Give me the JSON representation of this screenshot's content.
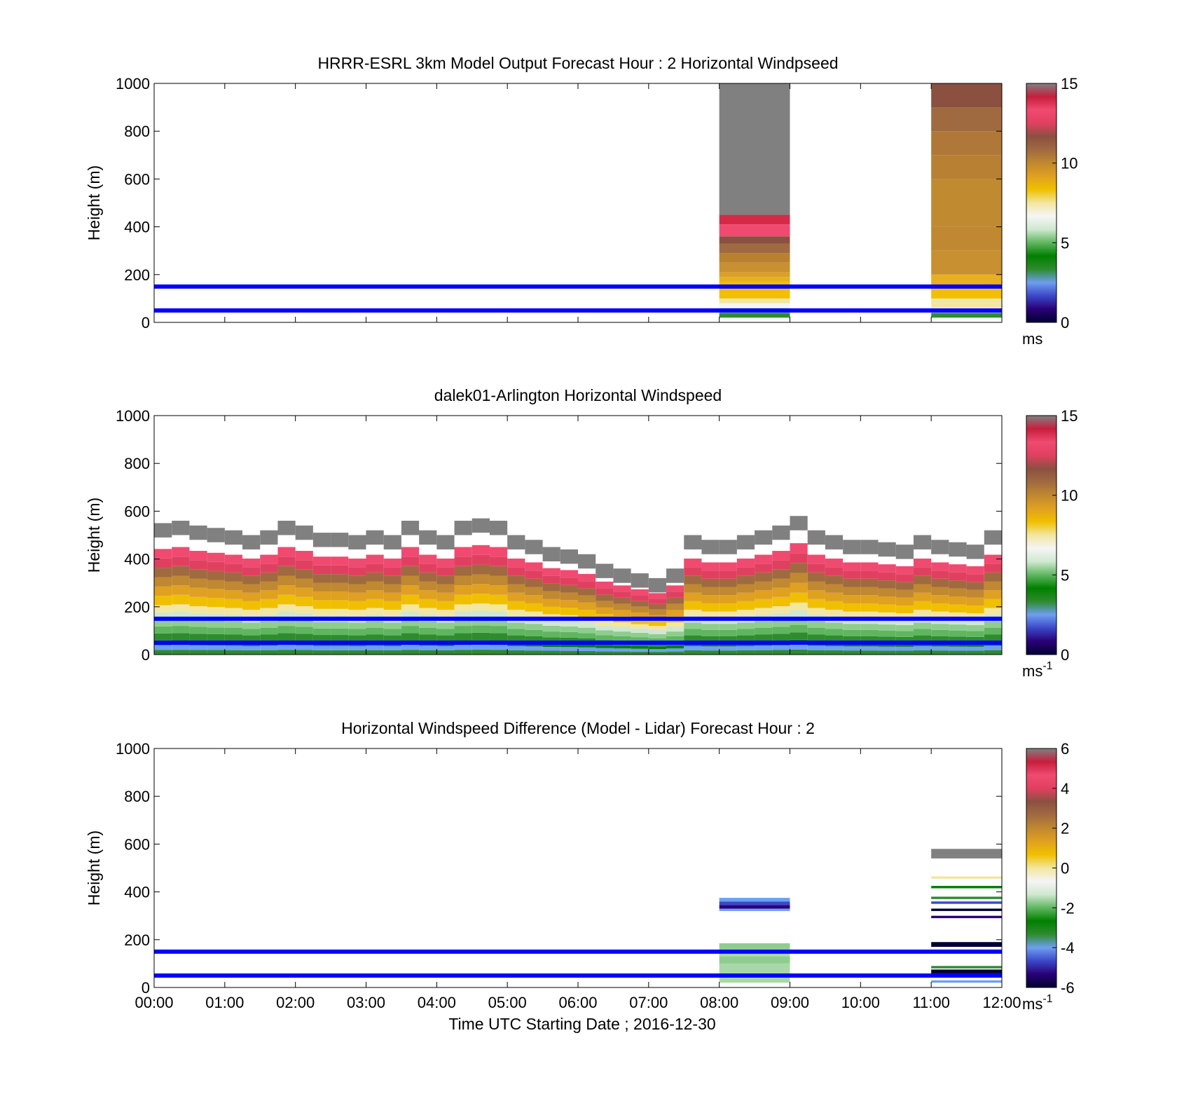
{
  "colorbar_stops": [
    "#000033",
    "#2a0077",
    "#3b48c8",
    "#6e9ff0",
    "#2e8b2e",
    "#008000",
    "#5fb65f",
    "#cfe8cf",
    "#f5f5f5",
    "#f2e6a0",
    "#f0c000",
    "#e0a020",
    "#c08830",
    "#a06a40",
    "#8b5040",
    "#e04060",
    "#f04a70",
    "#c81e3c",
    "#808080"
  ],
  "panels": [
    {
      "title": "HRRR-ESRL 3km Model Output   Forecast Hour : 2 Horizontal Windpseed",
      "ylabel": "Height (m)",
      "unit_base": "ms",
      "unit_sup": "",
      "show_xticks": false
    },
    {
      "title": "dalek01-Arlington  Horizontal Windspeed",
      "ylabel": "Height (m)",
      "unit_base": "ms",
      "unit_sup": "-1",
      "show_xticks": false
    },
    {
      "title": "Horizontal Windspeed Difference (Model - Lidar) Forecast Hour : 2",
      "ylabel": "Height (m)",
      "unit_base": "ms",
      "unit_sup": "-1",
      "show_xticks": true
    }
  ],
  "xlabel": "Time UTC  Starting Date ; 2016-12-30",
  "chart_data": [
    {
      "type": "heatmap",
      "title": "HRRR-ESRL 3km Model Output   Forecast Hour : 2 Horizontal Windpseed",
      "ylabel": "Height (m)",
      "xlim": [
        0,
        12
      ],
      "ylim": [
        0,
        1000
      ],
      "x_ticks": [
        "00:00",
        "01:00",
        "02:00",
        "03:00",
        "04:00",
        "05:00",
        "06:00",
        "07:00",
        "08:00",
        "09:00",
        "10:00",
        "11:00",
        "12:00"
      ],
      "y_ticks": [
        0,
        200,
        400,
        600,
        800,
        1000
      ],
      "colorbar": {
        "range": [
          0,
          15
        ],
        "ticks": [
          0,
          5,
          10,
          15
        ],
        "unit": "ms"
      },
      "reference_lines_m": [
        50,
        150
      ],
      "columns": [
        {
          "t0": 8,
          "t1": 9,
          "cells": [
            [
              10,
              20,
              "#f5f5f5"
            ],
            [
              20,
              40,
              "#2e8b2e"
            ],
            [
              40,
              60,
              "#9fd49f"
            ],
            [
              60,
              80,
              "#f5f5f5"
            ],
            [
              80,
              100,
              "#f2e6a0"
            ],
            [
              100,
              120,
              "#f0c000"
            ],
            [
              120,
              150,
              "#f0c000"
            ],
            [
              150,
              170,
              "#f0c000"
            ],
            [
              170,
              190,
              "#e8b020"
            ],
            [
              190,
              210,
              "#d9a028"
            ],
            [
              210,
              250,
              "#c89030"
            ],
            [
              250,
              290,
              "#b8802f"
            ],
            [
              290,
              330,
              "#a06a40"
            ],
            [
              330,
              360,
              "#8b5040"
            ],
            [
              360,
              410,
              "#f04a70"
            ],
            [
              410,
              450,
              "#d42a48"
            ],
            [
              450,
              1000,
              "#808080"
            ]
          ]
        },
        {
          "t0": 11,
          "t1": 12,
          "cells": [
            [
              10,
              20,
              "#f5f5f5"
            ],
            [
              20,
              40,
              "#2e8b2e"
            ],
            [
              40,
              60,
              "#f5f5f5"
            ],
            [
              60,
              80,
              "#f2e6a0"
            ],
            [
              80,
              100,
              "#f2e6a0"
            ],
            [
              100,
              150,
              "#f0c000"
            ],
            [
              150,
              200,
              "#e8b020"
            ],
            [
              200,
              300,
              "#c89030"
            ],
            [
              300,
              400,
              "#c08830"
            ],
            [
              400,
              500,
              "#c08a30"
            ],
            [
              500,
              600,
              "#c08a30"
            ],
            [
              600,
              700,
              "#b88032"
            ],
            [
              700,
              800,
              "#b07838"
            ],
            [
              800,
              900,
              "#a06a40"
            ],
            [
              900,
              1000,
              "#8b5040"
            ]
          ]
        }
      ]
    },
    {
      "type": "heatmap",
      "title": "dalek01-Arlington  Horizontal Windspeed",
      "ylabel": "Height (m)",
      "xlim": [
        0,
        12
      ],
      "ylim": [
        0,
        1000
      ],
      "x_ticks": [
        "00:00",
        "01:00",
        "02:00",
        "03:00",
        "04:00",
        "05:00",
        "06:00",
        "07:00",
        "08:00",
        "09:00",
        "10:00",
        "11:00",
        "12:00"
      ],
      "y_ticks": [
        0,
        200,
        400,
        600,
        800,
        1000
      ],
      "colorbar": {
        "range": [
          0,
          15
        ],
        "ticks": [
          0,
          5,
          10,
          15
        ],
        "unit": "ms-1"
      },
      "reference_lines_m": [
        50,
        150
      ],
      "profiles_hour_top_m": [
        [
          0.0,
          550
        ],
        [
          0.25,
          560
        ],
        [
          0.5,
          540
        ],
        [
          0.75,
          530
        ],
        [
          1.0,
          520
        ],
        [
          1.25,
          500
        ],
        [
          1.5,
          520
        ],
        [
          1.75,
          560
        ],
        [
          2.0,
          540
        ],
        [
          2.25,
          510
        ],
        [
          2.5,
          510
        ],
        [
          2.75,
          500
        ],
        [
          3.0,
          520
        ],
        [
          3.25,
          500
        ],
        [
          3.5,
          560
        ],
        [
          3.75,
          520
        ],
        [
          4.0,
          500
        ],
        [
          4.25,
          560
        ],
        [
          4.5,
          570
        ],
        [
          4.75,
          560
        ],
        [
          5.0,
          500
        ],
        [
          5.25,
          480
        ],
        [
          5.5,
          450
        ],
        [
          5.75,
          440
        ],
        [
          6.0,
          420
        ],
        [
          6.25,
          380
        ],
        [
          6.5,
          360
        ],
        [
          6.75,
          340
        ],
        [
          7.0,
          320
        ],
        [
          7.25,
          360
        ],
        [
          7.5,
          500
        ],
        [
          7.75,
          480
        ],
        [
          8.0,
          480
        ],
        [
          8.25,
          500
        ],
        [
          8.5,
          520
        ],
        [
          8.75,
          540
        ],
        [
          9.0,
          580
        ],
        [
          9.25,
          520
        ],
        [
          9.5,
          500
        ],
        [
          9.75,
          480
        ],
        [
          10.0,
          480
        ],
        [
          10.25,
          470
        ],
        [
          10.5,
          460
        ],
        [
          10.75,
          500
        ],
        [
          11.0,
          480
        ],
        [
          11.25,
          470
        ],
        [
          11.5,
          460
        ],
        [
          11.75,
          520
        ]
      ]
    },
    {
      "type": "heatmap",
      "title": "Horizontal Windspeed Difference (Model - Lidar) Forecast Hour : 2",
      "ylabel": "Height (m)",
      "xlabel": "Time UTC  Starting Date ; 2016-12-30",
      "xlim": [
        0,
        12
      ],
      "ylim": [
        0,
        1000
      ],
      "x_ticks": [
        "00:00",
        "01:00",
        "02:00",
        "03:00",
        "04:00",
        "05:00",
        "06:00",
        "07:00",
        "08:00",
        "09:00",
        "10:00",
        "11:00",
        "12:00"
      ],
      "y_ticks": [
        0,
        200,
        400,
        600,
        800,
        1000
      ],
      "colorbar": {
        "range": [
          -6,
          6
        ],
        "ticks": [
          -6,
          -4,
          -2,
          0,
          2,
          4,
          6
        ],
        "unit": "ms-1"
      },
      "reference_lines_m": [
        50,
        150
      ],
      "columns": [
        {
          "t0": 8,
          "t1": 9,
          "cells": [
            [
              20,
              40,
              "#a8d8a8"
            ],
            [
              40,
              60,
              "#8fcd8f"
            ],
            [
              60,
              100,
              "#a8d8a8"
            ],
            [
              100,
              130,
              "#8fcd8f"
            ],
            [
              130,
              160,
              "#a8d8a8"
            ],
            [
              160,
              185,
              "#8fcd8f"
            ],
            [
              320,
              330,
              "#6e9ff0"
            ],
            [
              330,
              345,
              "#2a0077"
            ],
            [
              345,
              360,
              "#3b48c8"
            ],
            [
              360,
              375,
              "#6e9ff0"
            ]
          ]
        },
        {
          "t0": 11,
          "t1": 12,
          "cells": [
            [
              20,
              30,
              "#6e9ff0"
            ],
            [
              50,
              60,
              "#2a0077"
            ],
            [
              60,
              75,
              "#000033"
            ],
            [
              80,
              90,
              "#2e8b2e"
            ],
            [
              170,
              190,
              "#000033"
            ],
            [
              290,
              300,
              "#2a0077"
            ],
            [
              320,
              330,
              "#000033"
            ],
            [
              350,
              360,
              "#3b48c8"
            ],
            [
              370,
              380,
              "#2e8b2e"
            ],
            [
              415,
              425,
              "#008000"
            ],
            [
              455,
              465,
              "#f2e6a0"
            ],
            [
              540,
              580,
              "#808080"
            ]
          ]
        }
      ]
    }
  ]
}
